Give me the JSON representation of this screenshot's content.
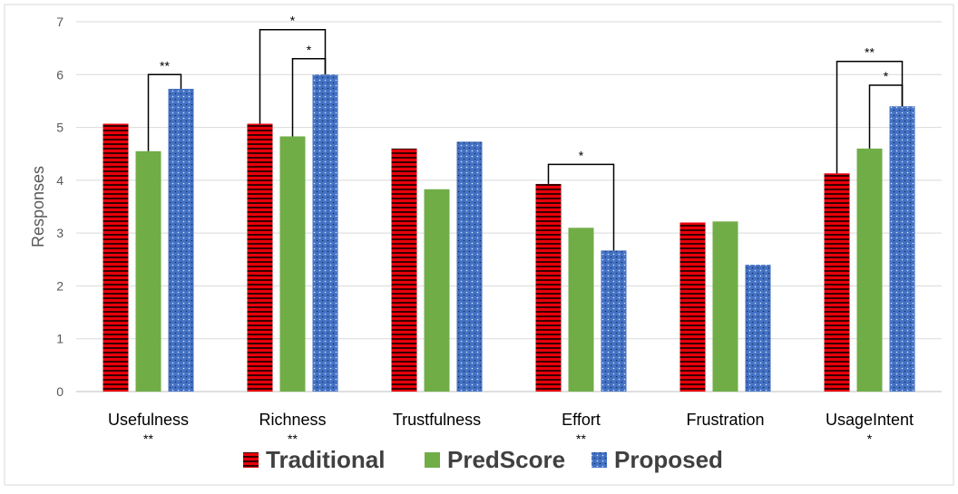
{
  "chart_data": {
    "type": "bar",
    "title": "",
    "xlabel": "",
    "ylabel": "Responses",
    "ylim": [
      0,
      7
    ],
    "yticks": [
      "0",
      "1",
      "2",
      "3",
      "4",
      "5",
      "6",
      "7"
    ],
    "grid": true,
    "legend_position": "bottom",
    "categories": [
      "Usefulness",
      "Richness",
      "Trustfulness",
      "Effort",
      "Frustration",
      "UsageIntent"
    ],
    "category_marks": [
      "**",
      "**",
      "",
      "**",
      "",
      "*"
    ],
    "series": [
      {
        "name": "Traditional",
        "color": "#e8000b",
        "pattern": "horizontal-stripes",
        "values": [
          5.07,
          5.07,
          4.6,
          3.93,
          3.2,
          4.13
        ]
      },
      {
        "name": "PredScore",
        "color": "#70ad47",
        "pattern": "solid",
        "values": [
          4.55,
          4.83,
          3.83,
          3.1,
          3.22,
          4.6
        ]
      },
      {
        "name": "Proposed",
        "color": "#4472c4",
        "pattern": "dots",
        "values": [
          5.73,
          6.0,
          4.73,
          2.67,
          2.4,
          5.4
        ]
      }
    ],
    "significance": [
      {
        "category": 0,
        "from": 1,
        "to": 2,
        "mark": "**",
        "level": 6.0
      },
      {
        "category": 1,
        "from": 0,
        "to": 2,
        "mark": "*",
        "level": 6.85
      },
      {
        "category": 1,
        "from": 1,
        "to": 2,
        "mark": "*",
        "level": 6.3
      },
      {
        "category": 3,
        "from": 0,
        "to": 2,
        "mark": "*",
        "level": 4.3
      },
      {
        "category": 5,
        "from": 0,
        "to": 2,
        "mark": "**",
        "level": 6.25
      },
      {
        "category": 5,
        "from": 1,
        "to": 2,
        "mark": "*",
        "level": 5.8
      }
    ]
  }
}
